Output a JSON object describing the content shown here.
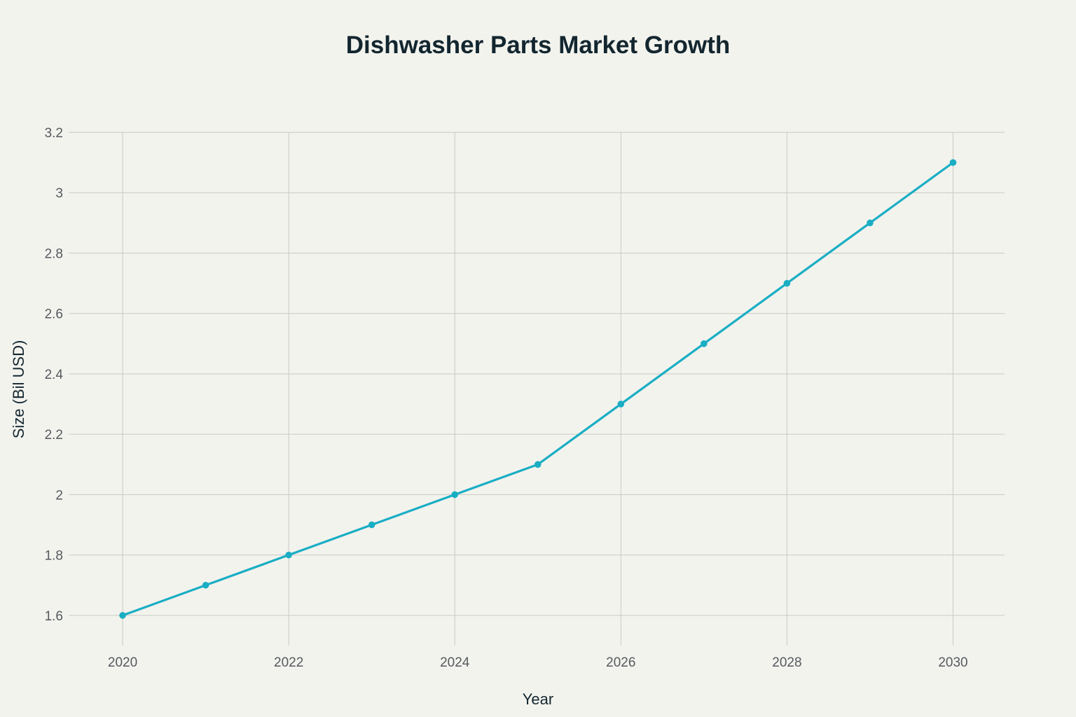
{
  "chart_data": {
    "type": "line",
    "title": "Dishwasher Parts Market Growth",
    "xlabel": "Year",
    "ylabel": "Size (Bil USD)",
    "x": [
      2020,
      2021,
      2022,
      2023,
      2024,
      2025,
      2026,
      2027,
      2028,
      2029,
      2030
    ],
    "series": [
      {
        "values": [
          1.6,
          1.7,
          1.8,
          1.9,
          2.0,
          2.1,
          2.3,
          2.5,
          2.7,
          2.9,
          3.1
        ],
        "color": "#1aaec4"
      }
    ],
    "xticks": [
      2020,
      2022,
      2024,
      2026,
      2028,
      2030
    ],
    "xtick_labels": [
      "2020",
      "2022",
      "2024",
      "2026",
      "2028",
      "2030"
    ],
    "yticks": [
      1.6,
      1.8,
      2.0,
      2.2,
      2.4,
      2.6,
      2.8,
      3.0,
      3.2
    ],
    "ytick_labels": [
      "1.6",
      "1.8",
      "2",
      "2.2",
      "2.4",
      "2.6",
      "2.8",
      "3",
      "3.2"
    ],
    "xlim": [
      2019.35,
      2030.62
    ],
    "ylim": [
      1.5,
      3.2
    ],
    "grid": true,
    "legend": "none",
    "background": "#f3f3ee"
  }
}
